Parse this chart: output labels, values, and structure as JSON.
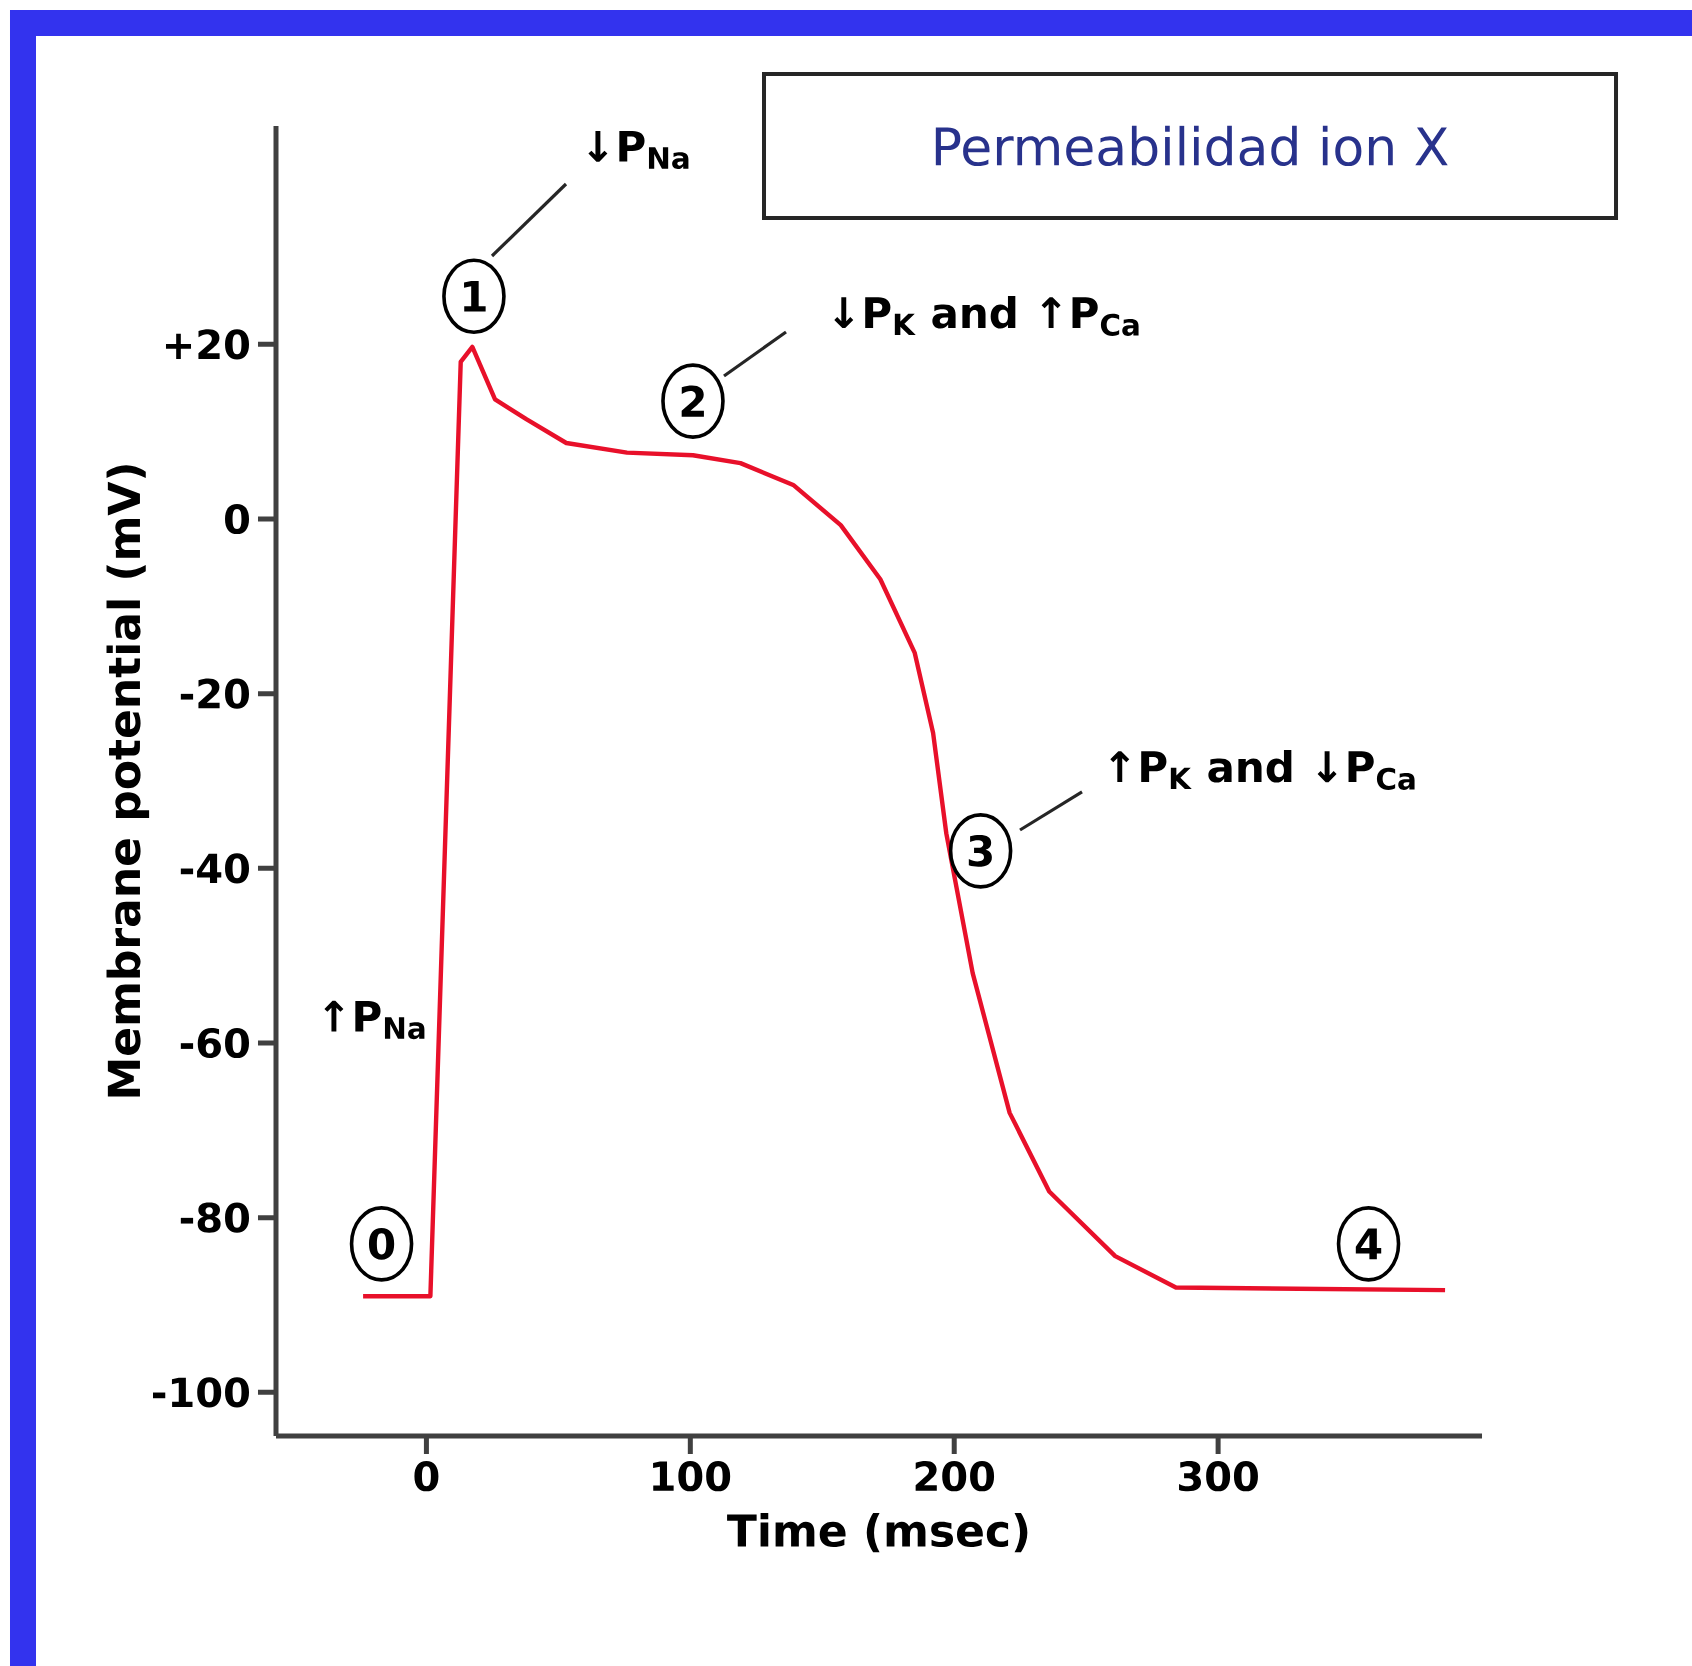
{
  "chart_data": {
    "type": "line",
    "title": "Permeabilidad ion X",
    "xlabel": "Time (msec)",
    "ylabel": "Membrane potential (mV)",
    "x": [
      -24,
      1.5,
      13,
      17.4,
      26,
      38,
      53,
      76,
      101,
      119,
      139,
      157,
      172,
      185,
      192,
      197,
      207,
      221,
      236,
      261,
      284,
      386
    ],
    "series": [
      {
        "color": "#e8102a",
        "values": [
          -89,
          -89,
          18,
          19.7,
          13.7,
          11.4,
          8.7,
          7.6,
          7.3,
          6.4,
          3.9,
          -0.7,
          -6.9,
          -15.3,
          -24.5,
          -36,
          -52,
          -68,
          -77,
          -84.4,
          -88,
          -88.3
        ]
      }
    ],
    "xlim": [
      -57,
      400
    ],
    "ylim": [
      -105,
      45
    ],
    "xticks": [
      0,
      100,
      200,
      300
    ],
    "yticks": [
      -100,
      -80,
      -60,
      -40,
      -20,
      0,
      {
        "value": 20,
        "label": "+20"
      }
    ],
    "marker": "none",
    "line_style": "solid",
    "annotations": [
      {
        "text": "0",
        "x": -17,
        "y": -83
      },
      {
        "text": "1",
        "x": 18,
        "y": 25.5
      },
      {
        "text": "2",
        "x": 101,
        "y": 13.5
      },
      {
        "text": "3",
        "x": 210,
        "y": -38
      },
      {
        "text": "4",
        "x": 357,
        "y": -83
      },
      "↓P$_{Na}$",
      "↓P$_{K}$ and ↑P$_{Ca}$",
      "↑P$_{K}$ and ↓P$_{Ca}$",
      "↑P$_{Na}$"
    ]
  }
}
